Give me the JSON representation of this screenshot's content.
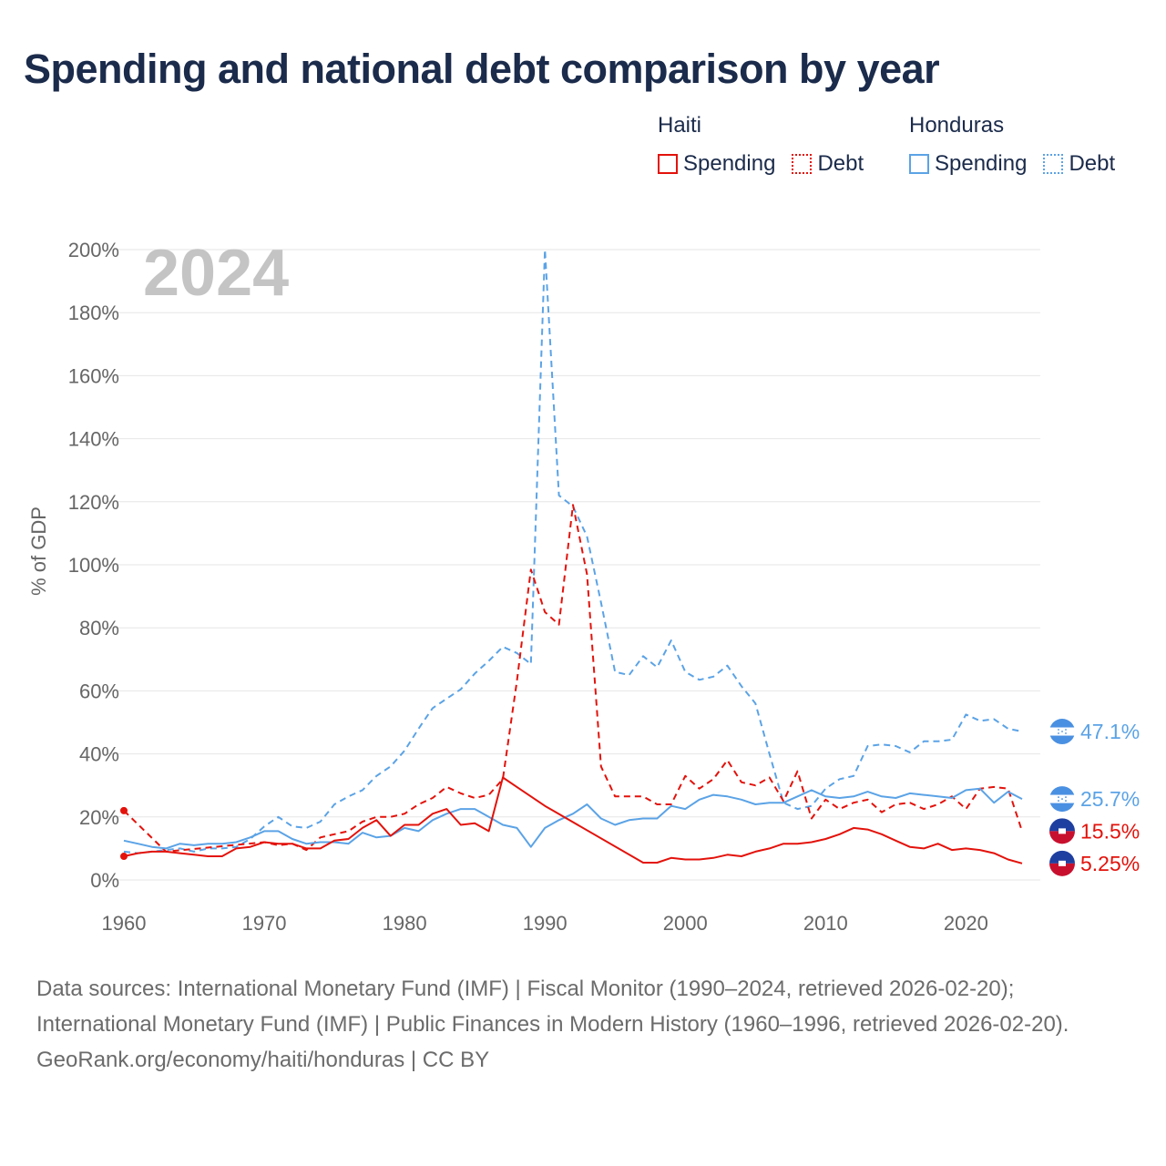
{
  "title": "Spending and national debt comparison by year",
  "legend": {
    "groups": [
      {
        "name": "Haiti",
        "color": "#e3120b",
        "items": [
          {
            "label": "Spending",
            "style": "solid"
          },
          {
            "label": "Debt",
            "style": "dotted"
          }
        ]
      },
      {
        "name": "Honduras",
        "color": "#5ba3e6",
        "items": [
          {
            "label": "Spending",
            "style": "solid"
          },
          {
            "label": "Debt",
            "style": "dotted"
          }
        ]
      }
    ]
  },
  "chart_data": {
    "type": "line",
    "year_label": "2024",
    "ylabel": "% of GDP",
    "xlabel": "",
    "xlim": [
      1960,
      2025
    ],
    "ylim": [
      0,
      200
    ],
    "yticks": [
      0,
      20,
      40,
      60,
      80,
      100,
      120,
      140,
      160,
      180,
      200
    ],
    "ytick_labels": [
      "0%",
      "20%",
      "40%",
      "60%",
      "80%",
      "100%",
      "120%",
      "140%",
      "160%",
      "180%",
      "200%"
    ],
    "xticks": [
      1960,
      1970,
      1980,
      1990,
      2000,
      2010,
      2020
    ],
    "xtick_labels": [
      "1960",
      "1970",
      "1980",
      "1990",
      "2000",
      "2010",
      "2020"
    ],
    "grid": true,
    "series": [
      {
        "name": "Honduras Debt",
        "country": "Honduras",
        "kind": "debt",
        "color": "#5ba3e6",
        "dash": "dashed",
        "end_label": "47.1%",
        "flag": "honduras",
        "x": [
          1960,
          1961,
          1962,
          1963,
          1964,
          1965,
          1966,
          1967,
          1968,
          1969,
          1970,
          1971,
          1972,
          1973,
          1974,
          1975,
          1976,
          1977,
          1978,
          1979,
          1980,
          1981,
          1982,
          1983,
          1984,
          1985,
          1986,
          1987,
          1988,
          1989,
          1990,
          1991,
          1992,
          1993,
          1994,
          1995,
          1996,
          1997,
          1998,
          1999,
          2000,
          2001,
          2002,
          2003,
          2004,
          2005,
          2006,
          2007,
          2008,
          2009,
          2010,
          2011,
          2012,
          2013,
          2014,
          2015,
          2016,
          2017,
          2018,
          2019,
          2020,
          2021,
          2022,
          2023,
          2024
        ],
        "y": [
          9,
          8.5,
          9,
          9.5,
          10,
          9,
          10,
          10,
          10.5,
          13,
          17,
          20,
          17,
          16.5,
          18.5,
          24,
          26.5,
          28.5,
          33,
          36,
          41,
          48,
          54.5,
          57.5,
          60.5,
          65.5,
          69.5,
          74,
          72,
          68.5,
          200,
          122,
          118.5,
          109,
          88,
          66,
          65,
          71,
          67.5,
          76,
          66,
          63.5,
          64.5,
          68,
          61.5,
          56,
          40,
          24.5,
          22.5,
          23.5,
          29,
          32,
          33,
          42.5,
          43,
          42.5,
          40.5,
          44,
          44,
          44.5,
          52.5,
          50.5,
          51,
          48,
          47.1
        ]
      },
      {
        "name": "Haiti Debt",
        "country": "Haiti",
        "kind": "debt",
        "color": "#e3120b",
        "dash": "dashed",
        "end_label": "15.5%",
        "flag": "haiti",
        "x": [
          1960,
          1963,
          1970,
          1971,
          1972,
          1973,
          1974,
          1975,
          1976,
          1977,
          1978,
          1979,
          1980,
          1981,
          1982,
          1983,
          1984,
          1985,
          1986,
          1987,
          1988,
          1989,
          1990,
          1991,
          1992,
          1993,
          1994,
          1995,
          1996,
          1997,
          1998,
          1999,
          2000,
          2001,
          2002,
          2003,
          2004,
          2005,
          2006,
          2007,
          2008,
          2009,
          2010,
          2011,
          2012,
          2013,
          2014,
          2015,
          2016,
          2017,
          2018,
          2019,
          2020,
          2021,
          2022,
          2023,
          2024
        ],
        "y": [
          22,
          9,
          12,
          11,
          11.5,
          9.5,
          13.5,
          14.5,
          15.5,
          18.5,
          20,
          20,
          21,
          24,
          26,
          29.5,
          27.5,
          26,
          27,
          32,
          63,
          98.5,
          85,
          81,
          119,
          97,
          36,
          26.5,
          26.5,
          26.5,
          24,
          24,
          33,
          29,
          32,
          38,
          31,
          30,
          32.5,
          25,
          34.5,
          19.5,
          25.5,
          22.5,
          24.5,
          25.5,
          21.5,
          24,
          24.5,
          22.5,
          24,
          26.5,
          22.5,
          29,
          29.5,
          29,
          15.5
        ]
      },
      {
        "name": "Honduras Spending",
        "country": "Honduras",
        "kind": "spending",
        "color": "#5ba3e6",
        "dash": "solid",
        "end_label": "25.7%",
        "flag": "honduras",
        "x": [
          1960,
          1961,
          1962,
          1963,
          1964,
          1965,
          1966,
          1967,
          1968,
          1969,
          1970,
          1971,
          1972,
          1973,
          1974,
          1975,
          1976,
          1977,
          1978,
          1979,
          1980,
          1981,
          1982,
          1983,
          1984,
          1985,
          1986,
          1987,
          1988,
          1989,
          1990,
          1991,
          1992,
          1993,
          1994,
          1995,
          1996,
          1997,
          1998,
          1999,
          2000,
          2001,
          2002,
          2003,
          2004,
          2005,
          2006,
          2007,
          2008,
          2009,
          2010,
          2011,
          2012,
          2013,
          2014,
          2015,
          2016,
          2017,
          2018,
          2019,
          2020,
          2021,
          2022,
          2023,
          2024
        ],
        "y": [
          12.5,
          11.5,
          10.5,
          10,
          11.5,
          11,
          11.5,
          11.5,
          12,
          13.5,
          15.5,
          15.5,
          13,
          11.5,
          12,
          12,
          11.5,
          15,
          13.5,
          14,
          16.5,
          15.5,
          19,
          21,
          22.5,
          22.5,
          20,
          17.5,
          16.5,
          10.5,
          16.5,
          19,
          21,
          24,
          19.5,
          17.5,
          19,
          19.5,
          19.5,
          23.5,
          22.5,
          25.5,
          27,
          26.5,
          25.5,
          24,
          24.5,
          24.5,
          26.5,
          28.5,
          26.5,
          26,
          26.5,
          28,
          26.5,
          26,
          27.5,
          27,
          26.5,
          26,
          28.5,
          29,
          24.5,
          28,
          25.7
        ]
      },
      {
        "name": "Haiti Spending",
        "country": "Haiti",
        "kind": "spending",
        "color": "#e3120b",
        "dash": "solid",
        "end_label": "5.25%",
        "flag": "haiti",
        "x": [
          1960,
          1961,
          1962,
          1963,
          1964,
          1965,
          1966,
          1967,
          1968,
          1969,
          1970,
          1971,
          1972,
          1973,
          1974,
          1975,
          1976,
          1977,
          1978,
          1979,
          1980,
          1981,
          1982,
          1983,
          1984,
          1985,
          1986,
          1987,
          1988,
          1989,
          1990,
          1997,
          1998,
          1999,
          2000,
          2001,
          2002,
          2003,
          2004,
          2005,
          2006,
          2007,
          2008,
          2009,
          2010,
          2011,
          2012,
          2013,
          2014,
          2015,
          2016,
          2017,
          2018,
          2019,
          2020,
          2021,
          2022,
          2023,
          2024
        ],
        "y": [
          7.5,
          8.5,
          9,
          9,
          8.5,
          8,
          7.5,
          7.5,
          10,
          10.5,
          12,
          11.5,
          11.5,
          10,
          10,
          12.5,
          13,
          16.5,
          19,
          14,
          17.5,
          17.5,
          21,
          22.5,
          17.5,
          18,
          15.5,
          32.5,
          29.5,
          26.5,
          23.5,
          5.5,
          5.5,
          7,
          6.5,
          6.5,
          7,
          8,
          7.5,
          9,
          10,
          11.5,
          11.5,
          12,
          13,
          14.5,
          16.5,
          16,
          14.5,
          12.5,
          10.5,
          10,
          11.5,
          9.5,
          10,
          9.5,
          8.5,
          6.5,
          5.25
        ]
      }
    ]
  },
  "footer": {
    "sources": "Data sources: International Monetary Fund (IMF) | Fiscal Monitor (1990–2024, retrieved 2026-02-20); International Monetary Fund (IMF) | Public Finances in Modern History (1960–1996, retrieved 2026-02-20).",
    "credit": "GeoRank.org/economy/haiti/honduras | CC BY"
  }
}
